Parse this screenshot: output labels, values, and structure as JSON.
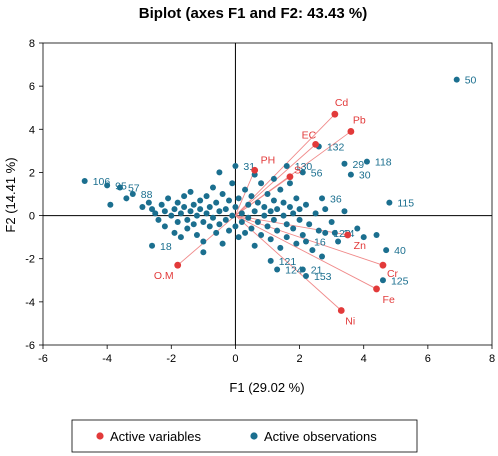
{
  "chart_data": {
    "type": "scatter",
    "title": "Biplot (axes F1 and F2: 43.43 %)",
    "xlabel": "F1 (29.02 %)",
    "ylabel": "F2 (14.41 %)",
    "xlim": [
      -6,
      8
    ],
    "ylim": [
      -6,
      8
    ],
    "xticks": [
      "-6",
      "-4",
      "-2",
      "0",
      "2",
      "4",
      "6",
      "8"
    ],
    "yticks": [
      "-6",
      "-4",
      "-2",
      "0",
      "2",
      "4",
      "6",
      "8"
    ],
    "grid": false,
    "legend_position": "bottom",
    "colors": {
      "variables": "#e23a3a",
      "observations": "#1b6f8f",
      "arrows": "#f08a8a"
    },
    "legend": [
      {
        "label": "Active variables",
        "color": "#e23a3a"
      },
      {
        "label": "Active observations",
        "color": "#1b6f8f"
      }
    ],
    "variables": [
      {
        "label": "Cd",
        "x": 3.1,
        "y": 4.7
      },
      {
        "label": "Pb",
        "x": 3.6,
        "y": 3.9
      },
      {
        "label": "EC",
        "x": 2.5,
        "y": 3.3
      },
      {
        "label": "PH",
        "x": 0.6,
        "y": 2.1
      },
      {
        "label": "S",
        "x": 1.7,
        "y": 1.8
      },
      {
        "label": "Zn",
        "x": 3.5,
        "y": -0.9
      },
      {
        "label": "Cr",
        "x": 4.6,
        "y": -2.3
      },
      {
        "label": "Fe",
        "x": 4.4,
        "y": -3.4
      },
      {
        "label": "Ni",
        "x": 3.3,
        "y": -4.4
      },
      {
        "label": "O.M",
        "x": -1.8,
        "y": -2.3
      }
    ],
    "labeled_observations": [
      {
        "label": "50",
        "x": 6.9,
        "y": 6.3
      },
      {
        "label": "132",
        "x": 2.6,
        "y": 3.2
      },
      {
        "label": "118",
        "x": 4.1,
        "y": 2.5
      },
      {
        "label": "29",
        "x": 3.4,
        "y": 2.4
      },
      {
        "label": "130",
        "x": 1.6,
        "y": 2.3
      },
      {
        "label": "56",
        "x": 2.1,
        "y": 2.0
      },
      {
        "label": "31",
        "x": 0.0,
        "y": 2.3
      },
      {
        "label": "30",
        "x": 3.6,
        "y": 1.9
      },
      {
        "label": "106",
        "x": -4.7,
        "y": 1.6
      },
      {
        "label": "95",
        "x": -4.0,
        "y": 1.4
      },
      {
        "label": "57",
        "x": -3.6,
        "y": 1.3
      },
      {
        "label": "88",
        "x": -3.2,
        "y": 1.0
      },
      {
        "label": "115",
        "x": 4.8,
        "y": 0.6
      },
      {
        "label": "36",
        "x": 2.7,
        "y": 0.8
      },
      {
        "label": "40",
        "x": 4.7,
        "y": -1.6
      },
      {
        "label": "18",
        "x": -2.6,
        "y": -1.4
      },
      {
        "label": "121",
        "x": 1.1,
        "y": -2.1
      },
      {
        "label": "124",
        "x": 1.3,
        "y": -2.5
      },
      {
        "label": "21",
        "x": 2.1,
        "y": -2.5
      },
      {
        "label": "153",
        "x": 2.2,
        "y": -2.8
      },
      {
        "label": "125",
        "x": 4.6,
        "y": -3.0
      },
      {
        "label": "123",
        "x": 2.8,
        "y": -0.8
      },
      {
        "label": "14",
        "x": 3.1,
        "y": -0.8
      },
      {
        "label": "16",
        "x": 2.2,
        "y": -1.2
      }
    ],
    "observations": [
      [
        -2.9,
        0.4
      ],
      [
        -2.7,
        0.6
      ],
      [
        -2.6,
        0.3
      ],
      [
        -2.5,
        0.1
      ],
      [
        -2.4,
        -0.2
      ],
      [
        -2.3,
        0.5
      ],
      [
        -2.2,
        0.2
      ],
      [
        -2.2,
        -0.5
      ],
      [
        -2.1,
        0.8
      ],
      [
        -2.0,
        0.0
      ],
      [
        -1.9,
        0.3
      ],
      [
        -1.9,
        -0.8
      ],
      [
        -1.8,
        0.6
      ],
      [
        -1.8,
        -0.3
      ],
      [
        -1.7,
        0.1
      ],
      [
        -1.7,
        -1.0
      ],
      [
        -1.6,
        0.9
      ],
      [
        -1.6,
        0.4
      ],
      [
        -1.5,
        -0.2
      ],
      [
        -1.5,
        -0.6
      ],
      [
        -1.4,
        0.2
      ],
      [
        -1.4,
        1.1
      ],
      [
        -1.3,
        -0.4
      ],
      [
        -1.3,
        0.5
      ],
      [
        -1.2,
        0.0
      ],
      [
        -1.2,
        -0.9
      ],
      [
        -1.1,
        0.7
      ],
      [
        -1.1,
        0.3
      ],
      [
        -1.0,
        -0.3
      ],
      [
        -1.0,
        -1.2
      ],
      [
        -0.9,
        0.1
      ],
      [
        -0.9,
        0.9
      ],
      [
        -0.8,
        -0.5
      ],
      [
        -0.8,
        0.4
      ],
      [
        -0.7,
        1.3
      ],
      [
        -0.7,
        -0.1
      ],
      [
        -0.6,
        0.6
      ],
      [
        -0.6,
        -0.8
      ],
      [
        -0.5,
        0.2
      ],
      [
        -0.5,
        -0.4
      ],
      [
        -0.4,
        1.0
      ],
      [
        -0.4,
        -1.3
      ],
      [
        -0.3,
        0.3
      ],
      [
        -0.3,
        -0.2
      ],
      [
        -0.2,
        0.7
      ],
      [
        -0.2,
        -0.7
      ],
      [
        -0.1,
        0.0
      ],
      [
        -0.1,
        1.5
      ],
      [
        0.0,
        -0.5
      ],
      [
        0.0,
        0.4
      ],
      [
        0.1,
        -1.0
      ],
      [
        0.1,
        0.8
      ],
      [
        0.2,
        0.1
      ],
      [
        0.2,
        -0.3
      ],
      [
        0.3,
        1.2
      ],
      [
        0.3,
        -0.8
      ],
      [
        0.4,
        0.5
      ],
      [
        0.4,
        -0.1
      ],
      [
        0.5,
        -0.6
      ],
      [
        0.5,
        0.9
      ],
      [
        0.6,
        0.2
      ],
      [
        0.6,
        -1.4
      ],
      [
        0.7,
        -0.3
      ],
      [
        0.7,
        0.6
      ],
      [
        0.8,
        1.5
      ],
      [
        0.8,
        -0.9
      ],
      [
        0.9,
        0.0
      ],
      [
        0.9,
        0.4
      ],
      [
        1.0,
        -0.5
      ],
      [
        1.0,
        1.0
      ],
      [
        1.1,
        0.2
      ],
      [
        1.1,
        -1.1
      ],
      [
        1.2,
        0.7
      ],
      [
        1.2,
        -0.2
      ],
      [
        1.3,
        -0.7
      ],
      [
        1.3,
        0.3
      ],
      [
        1.4,
        1.2
      ],
      [
        1.4,
        -1.5
      ],
      [
        1.5,
        0.0
      ],
      [
        1.5,
        0.6
      ],
      [
        1.6,
        -0.4
      ],
      [
        1.6,
        -1.0
      ],
      [
        1.7,
        0.4
      ],
      [
        1.7,
        1.5
      ],
      [
        1.8,
        -0.6
      ],
      [
        1.8,
        0.1
      ],
      [
        1.9,
        -1.3
      ],
      [
        1.9,
        0.8
      ],
      [
        2.0,
        -0.2
      ],
      [
        2.0,
        0.3
      ],
      [
        2.1,
        -0.9
      ],
      [
        2.2,
        0.5
      ],
      [
        2.3,
        -0.4
      ],
      [
        2.4,
        -1.6
      ],
      [
        2.5,
        0.1
      ],
      [
        2.6,
        -0.7
      ],
      [
        2.7,
        -1.9
      ],
      [
        2.8,
        0.3
      ],
      [
        3.0,
        -0.3
      ],
      [
        3.2,
        -1.2
      ],
      [
        3.4,
        0.2
      ],
      [
        3.8,
        -0.6
      ],
      [
        4.0,
        -1.0
      ],
      [
        4.4,
        -0.9
      ],
      [
        -0.5,
        2.0
      ],
      [
        0.6,
        1.9
      ],
      [
        1.2,
        1.7
      ],
      [
        -3.9,
        0.5
      ],
      [
        -3.4,
        0.8
      ],
      [
        -1.0,
        -1.7
      ]
    ]
  }
}
